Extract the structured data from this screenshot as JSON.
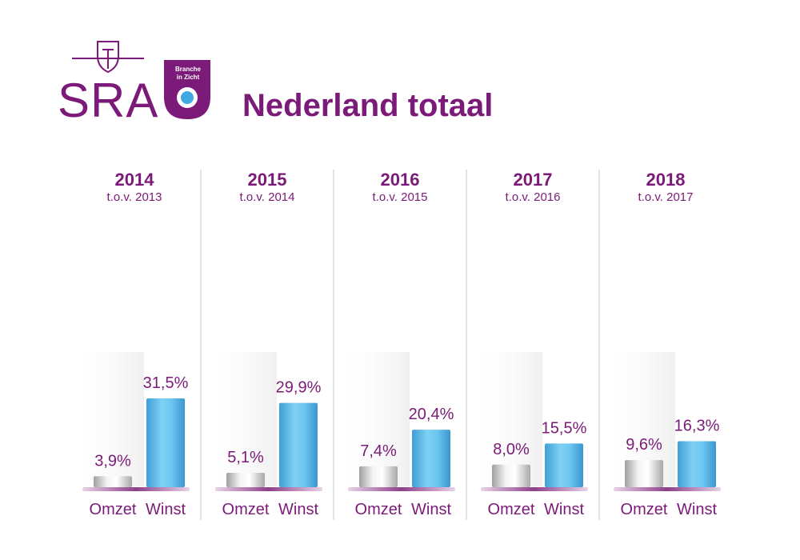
{
  "logo": {
    "text": "SRA",
    "badge_line1": "Branche",
    "badge_line2": "in Zicht"
  },
  "title": "Nederland totaal",
  "colors": {
    "brand": "#7b1a78",
    "omzet": "#d9d9d9",
    "winst": "#5ab9ea",
    "base": "#9b4f97"
  },
  "chart_data": {
    "type": "bar",
    "title": "Nederland totaal",
    "categories": [
      "Omzet",
      "Winst"
    ],
    "unit": "%",
    "groups": [
      {
        "year": "2014",
        "subtitle": "t.o.v. 2013",
        "values": [
          3.9,
          31.5
        ],
        "labels": [
          "3,9%",
          "31,5%"
        ]
      },
      {
        "year": "2015",
        "subtitle": "t.o.v. 2014",
        "values": [
          5.1,
          29.9
        ],
        "labels": [
          "5,1%",
          "29,9%"
        ]
      },
      {
        "year": "2016",
        "subtitle": "t.o.v. 2015",
        "values": [
          7.4,
          20.4
        ],
        "labels": [
          "7,4%",
          "20,4%"
        ]
      },
      {
        "year": "2017",
        "subtitle": "t.o.v. 2016",
        "values": [
          8.0,
          15.5
        ],
        "labels": [
          "8,0%",
          "15,5%"
        ]
      },
      {
        "year": "2018",
        "subtitle": "t.o.v. 2017",
        "values": [
          9.6,
          16.3
        ],
        "labels": [
          "9,6%",
          "16,3%"
        ]
      }
    ],
    "ylim": [
      0,
      31.5
    ],
    "grid": false,
    "legend": "none"
  }
}
